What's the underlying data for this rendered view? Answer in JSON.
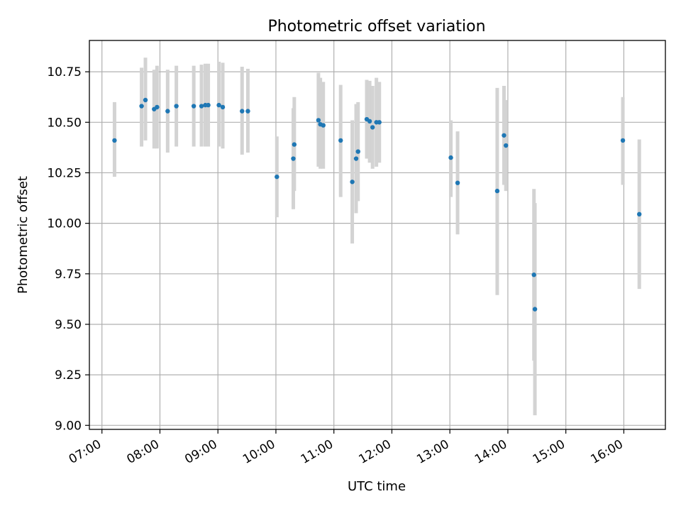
{
  "colors": {
    "point": "#1f77b4",
    "errorbar": "#d3d3d3",
    "grid": "#b0b0b0",
    "frame": "#000000"
  },
  "chart_data": {
    "type": "scatter",
    "title": "Photometric offset variation",
    "xlabel": "UTC time",
    "ylabel": "Photometric offset",
    "x_axis_type": "time",
    "x_ticks": [
      "07:00",
      "08:00",
      "09:00",
      "10:00",
      "11:00",
      "12:00",
      "13:00",
      "14:00",
      "15:00",
      "16:00"
    ],
    "xlim": [
      "06:47",
      "16:43"
    ],
    "y_ticks": [
      "9.00",
      "9.25",
      "9.50",
      "9.75",
      "10.00",
      "10.25",
      "10.50",
      "10.75"
    ],
    "ylim": [
      8.98,
      10.905
    ],
    "grid": true,
    "legend": "none",
    "error_bars": true,
    "points": [
      {
        "t": "07:13",
        "y": 10.41,
        "lo": 10.23,
        "hi": 10.6
      },
      {
        "t": "07:41",
        "y": 10.58,
        "lo": 10.38,
        "hi": 10.77
      },
      {
        "t": "07:45",
        "y": 10.61,
        "lo": 10.41,
        "hi": 10.82
      },
      {
        "t": "07:54",
        "y": 10.565,
        "lo": 10.37,
        "hi": 10.76
      },
      {
        "t": "07:57",
        "y": 10.575,
        "lo": 10.37,
        "hi": 10.78
      },
      {
        "t": "08:08",
        "y": 10.555,
        "lo": 10.35,
        "hi": 10.76
      },
      {
        "t": "08:17",
        "y": 10.58,
        "lo": 10.38,
        "hi": 10.78
      },
      {
        "t": "08:35",
        "y": 10.58,
        "lo": 10.38,
        "hi": 10.78
      },
      {
        "t": "08:43",
        "y": 10.58,
        "lo": 10.38,
        "hi": 10.785
      },
      {
        "t": "08:47",
        "y": 10.585,
        "lo": 10.38,
        "hi": 10.79
      },
      {
        "t": "08:50",
        "y": 10.585,
        "lo": 10.38,
        "hi": 10.79
      },
      {
        "t": "09:01",
        "y": 10.585,
        "lo": 10.38,
        "hi": 10.8
      },
      {
        "t": "09:05",
        "y": 10.575,
        "lo": 10.37,
        "hi": 10.795
      },
      {
        "t": "09:25",
        "y": 10.555,
        "lo": 10.34,
        "hi": 10.775
      },
      {
        "t": "09:31",
        "y": 10.555,
        "lo": 10.35,
        "hi": 10.765
      },
      {
        "t": "10:01",
        "y": 10.23,
        "lo": 10.03,
        "hi": 10.43
      },
      {
        "t": "10:18",
        "y": 10.32,
        "lo": 10.07,
        "hi": 10.57
      },
      {
        "t": "10:19",
        "y": 10.39,
        "lo": 10.16,
        "hi": 10.625
      },
      {
        "t": "10:44",
        "y": 10.51,
        "lo": 10.28,
        "hi": 10.745
      },
      {
        "t": "10:46",
        "y": 10.49,
        "lo": 10.27,
        "hi": 10.72
      },
      {
        "t": "10:49",
        "y": 10.485,
        "lo": 10.27,
        "hi": 10.7
      },
      {
        "t": "11:07",
        "y": 10.41,
        "lo": 10.13,
        "hi": 10.685
      },
      {
        "t": "11:19",
        "y": 10.205,
        "lo": 9.9,
        "hi": 10.51
      },
      {
        "t": "11:23",
        "y": 10.32,
        "lo": 10.05,
        "hi": 10.59
      },
      {
        "t": "11:25",
        "y": 10.355,
        "lo": 10.11,
        "hi": 10.6
      },
      {
        "t": "11:34",
        "y": 10.515,
        "lo": 10.32,
        "hi": 10.71
      },
      {
        "t": "11:37",
        "y": 10.505,
        "lo": 10.3,
        "hi": 10.705
      },
      {
        "t": "11:40",
        "y": 10.475,
        "lo": 10.27,
        "hi": 10.68
      },
      {
        "t": "11:44",
        "y": 10.5,
        "lo": 10.28,
        "hi": 10.72
      },
      {
        "t": "11:47",
        "y": 10.5,
        "lo": 10.3,
        "hi": 10.7
      },
      {
        "t": "13:01",
        "y": 10.325,
        "lo": 10.13,
        "hi": 10.51
      },
      {
        "t": "13:08",
        "y": 10.2,
        "lo": 9.945,
        "hi": 10.455
      },
      {
        "t": "13:49",
        "y": 10.16,
        "lo": 9.645,
        "hi": 10.67
      },
      {
        "t": "13:56",
        "y": 10.435,
        "lo": 10.19,
        "hi": 10.68
      },
      {
        "t": "13:58",
        "y": 10.385,
        "lo": 10.16,
        "hi": 10.61
      },
      {
        "t": "14:27",
        "y": 9.745,
        "lo": 9.32,
        "hi": 10.17
      },
      {
        "t": "14:28",
        "y": 9.575,
        "lo": 9.05,
        "hi": 10.1
      },
      {
        "t": "15:59",
        "y": 10.41,
        "lo": 10.19,
        "hi": 10.625
      },
      {
        "t": "16:16",
        "y": 10.045,
        "lo": 9.675,
        "hi": 10.415
      }
    ]
  }
}
